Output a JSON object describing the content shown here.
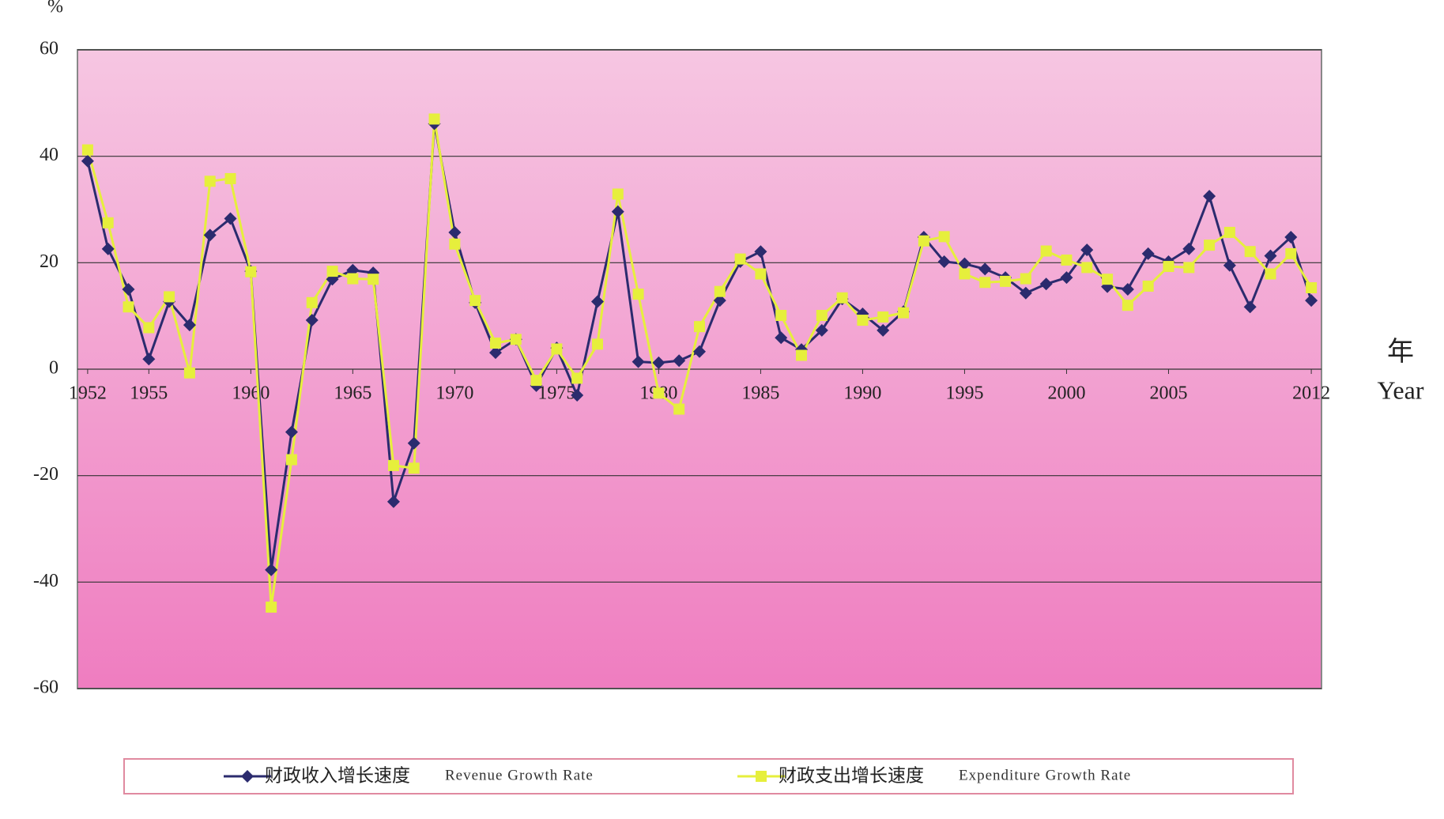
{
  "chart_data": {
    "type": "line",
    "y_label": "%",
    "x_label": "年",
    "x_label_en": "Year",
    "x": [
      1952,
      1953,
      1954,
      1955,
      1956,
      1957,
      1958,
      1959,
      1960,
      1961,
      1962,
      1963,
      1964,
      1965,
      1966,
      1967,
      1968,
      1969,
      1970,
      1971,
      1972,
      1973,
      1974,
      1975,
      1976,
      1977,
      1978,
      1979,
      1980,
      1981,
      1982,
      1983,
      1984,
      1985,
      1986,
      1987,
      1988,
      1989,
      1990,
      1991,
      1992,
      1993,
      1994,
      1995,
      1996,
      1997,
      1998,
      1999,
      2000,
      2001,
      2002,
      2003,
      2004,
      2005,
      2006,
      2007,
      2008,
      2009,
      2010,
      2011,
      2012
    ],
    "series": [
      {
        "name": "财政收入增长速度",
        "name_en": "Revenue Growth Rate",
        "color": "#2b2b6e",
        "marker": "diamond",
        "values": [
          39.1,
          22.6,
          15.0,
          1.9,
          12.7,
          8.3,
          25.2,
          28.3,
          18.4,
          -37.7,
          -11.8,
          9.2,
          16.9,
          18.6,
          18.1,
          -24.9,
          -13.9,
          46.1,
          25.7,
          12.5,
          3.1,
          5.6,
          -3.1,
          4.0,
          -4.9,
          12.7,
          29.6,
          1.4,
          1.2,
          1.6,
          3.3,
          12.9,
          20.2,
          22.1,
          5.9,
          3.7,
          7.3,
          13.2,
          10.4,
          7.3,
          10.8,
          24.8,
          20.2,
          19.8,
          18.8,
          17.2,
          14.3,
          16.0,
          17.2,
          22.4,
          15.5,
          15.0,
          21.7,
          20.2,
          22.6,
          32.5,
          19.5,
          11.7,
          21.3,
          24.8,
          12.9
        ]
      },
      {
        "name": "财政支出增长速度",
        "name_en": "Expenditure Growth Rate",
        "color": "#e6ef3c",
        "marker": "square",
        "values": [
          41.2,
          27.5,
          11.7,
          7.8,
          13.6,
          -0.7,
          35.3,
          35.8,
          18.3,
          -44.7,
          -17.0,
          12.5,
          18.4,
          17.0,
          16.9,
          -18.1,
          -18.6,
          47.0,
          23.5,
          12.9,
          4.9,
          5.6,
          -2.1,
          3.8,
          -1.7,
          4.7,
          32.9,
          14.1,
          -4.5,
          -7.5,
          8.0,
          14.6,
          20.7,
          17.9,
          10.1,
          2.6,
          10.1,
          13.4,
          9.2,
          9.8,
          10.6,
          24.1,
          24.9,
          17.9,
          16.3,
          16.5,
          17.0,
          22.2,
          20.5,
          19.1,
          16.9,
          12.0,
          15.6,
          19.3,
          19.1,
          23.3,
          25.7,
          22.1,
          17.9,
          21.7,
          15.3
        ]
      }
    ],
    "xlim": [
      1951.5,
      2012.5
    ],
    "xticks": [
      1952,
      1955,
      1960,
      1965,
      1970,
      1975,
      1980,
      1985,
      1990,
      1995,
      2000,
      2005,
      2012
    ],
    "ylim": [
      -60,
      60
    ],
    "yticks": [
      -60,
      -40,
      -20,
      0,
      20,
      40,
      60
    ],
    "grid": true
  }
}
